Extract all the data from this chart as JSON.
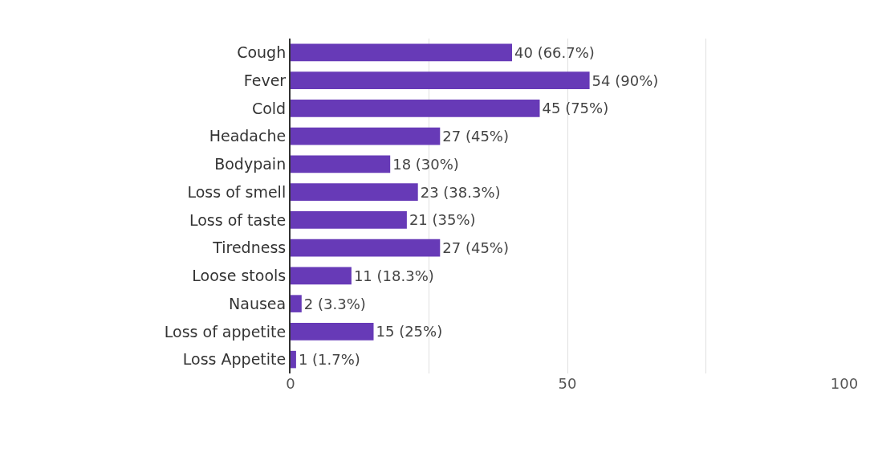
{
  "chart_data": {
    "type": "bar",
    "orientation": "horizontal",
    "categories": [
      "Cough",
      "Fever",
      "Cold",
      "Headache",
      "Bodypain",
      "Loss of smell",
      "Loss of taste",
      "Tiredness",
      "Loose stools",
      "Nausea",
      "Loss of appetite",
      "Loss Appetite"
    ],
    "values": [
      40,
      54,
      45,
      27,
      18,
      23,
      21,
      27,
      11,
      2,
      15,
      1
    ],
    "value_labels": [
      "40 (66.7%)",
      "54 (90%)",
      "45 (75%)",
      "27 (45%)",
      "18 (30%)",
      "23 (38.3%)",
      "21 (35%)",
      "27 (45%)",
      "11 (18.3%)",
      "2 (3.3%)",
      "15 (25%)",
      "1 (1.7%)"
    ],
    "color": "#673ab7",
    "xlim": [
      0,
      100
    ],
    "xticks": [
      0,
      {
        "value": 25,
        "label": null
      },
      50,
      {
        "value": 75,
        "label": null
      },
      100
    ],
    "grid": "x",
    "legend": false
  }
}
